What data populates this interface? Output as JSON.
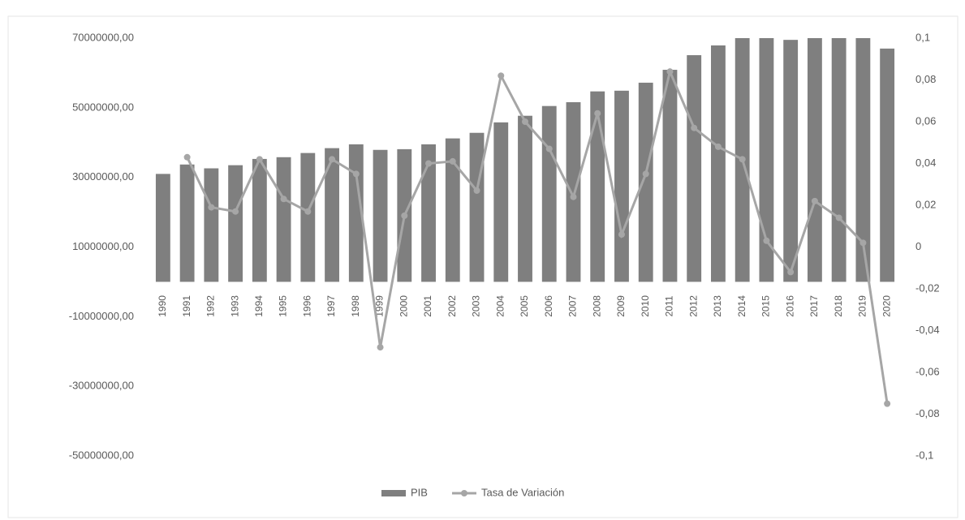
{
  "chart_data": {
    "type": "bar-line",
    "categories": [
      "1990",
      "1991",
      "1992",
      "1993",
      "1994",
      "1995",
      "1996",
      "1997",
      "1998",
      "1999",
      "2000",
      "2001",
      "2002",
      "2003",
      "2004",
      "2005",
      "2006",
      "2007",
      "2008",
      "2009",
      "2010",
      "2011",
      "2012",
      "2013",
      "2014",
      "2015",
      "2016",
      "2017",
      "2018",
      "2019",
      "2020"
    ],
    "series": [
      {
        "name": "PIB",
        "color": "#7f7f7f",
        "type": "bar",
        "values": [
          31000000,
          33700000,
          32600000,
          33500000,
          35300000,
          35800000,
          37000000,
          38400000,
          39500000,
          37900000,
          38100000,
          39500000,
          41200000,
          42800000,
          45800000,
          47700000,
          50500000,
          51600000,
          54700000,
          54900000,
          57200000,
          60900000,
          65100000,
          67900000,
          70000000,
          70000000,
          69500000,
          70000000,
          70000000,
          70000000,
          67000000
        ]
      },
      {
        "name": "Tasa de Variación",
        "color": "#a6a6a6",
        "type": "line",
        "axis": "y2",
        "values": [
          null,
          0.043,
          0.019,
          0.017,
          0.042,
          0.023,
          0.017,
          0.042,
          0.035,
          -0.048,
          0.015,
          0.04,
          0.041,
          0.027,
          0.082,
          0.06,
          0.047,
          0.024,
          0.064,
          0.006,
          0.035,
          0.084,
          0.057,
          0.048,
          0.042,
          0.003,
          -0.012,
          0.022,
          0.014,
          0.002,
          -0.075
        ]
      }
    ],
    "ylim": [
      -50000000,
      70000000
    ],
    "yticks": [
      {
        "value": -50000000,
        "label": "-50000000,00"
      },
      {
        "value": -30000000,
        "label": "-30000000,00"
      },
      {
        "value": -10000000,
        "label": "-10000000,00"
      },
      {
        "value": 10000000,
        "label": "10000000,00"
      },
      {
        "value": 30000000,
        "label": "30000000,00"
      },
      {
        "value": 50000000,
        "label": "50000000,00"
      },
      {
        "value": 70000000,
        "label": "70000000,00"
      }
    ],
    "y2lim": [
      -0.1,
      0.1
    ],
    "y2ticks": [
      {
        "value": -0.1,
        "label": "-0,1"
      },
      {
        "value": -0.08,
        "label": "-0,08"
      },
      {
        "value": -0.06,
        "label": "-0,06"
      },
      {
        "value": -0.04,
        "label": "-0,04"
      },
      {
        "value": -0.02,
        "label": "-0,02"
      },
      0,
      {
        "value": 0.02,
        "label": "0,02"
      },
      {
        "value": 0.04,
        "label": "0,04"
      },
      {
        "value": 0.06,
        "label": "0,06"
      },
      {
        "value": 0.08,
        "label": "0,08"
      },
      {
        "value": 0.1,
        "label": "0,1"
      }
    ],
    "legend": "bottom"
  }
}
